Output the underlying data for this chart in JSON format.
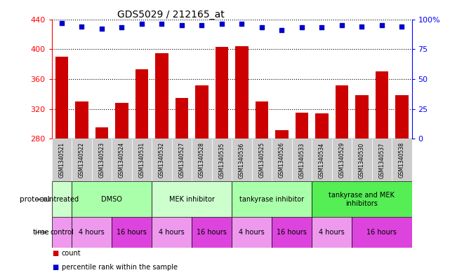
{
  "title": "GDS5029 / 212165_at",
  "samples": [
    "GSM1340521",
    "GSM1340522",
    "GSM1340523",
    "GSM1340524",
    "GSM1340531",
    "GSM1340532",
    "GSM1340527",
    "GSM1340528",
    "GSM1340535",
    "GSM1340536",
    "GSM1340525",
    "GSM1340526",
    "GSM1340533",
    "GSM1340534",
    "GSM1340529",
    "GSM1340530",
    "GSM1340537",
    "GSM1340538"
  ],
  "counts": [
    390,
    330,
    295,
    328,
    373,
    395,
    335,
    352,
    403,
    404,
    330,
    292,
    315,
    314,
    352,
    338,
    370,
    338
  ],
  "percentile_ranks": [
    97,
    94,
    92,
    93,
    96,
    96,
    95,
    95,
    96,
    96,
    93,
    91,
    93,
    93,
    95,
    94,
    95,
    94
  ],
  "ylim_left": [
    280,
    440
  ],
  "ylim_right": [
    0,
    100
  ],
  "yticks_left": [
    280,
    320,
    360,
    400,
    440
  ],
  "yticks_right": [
    0,
    25,
    50,
    75,
    100
  ],
  "bar_color": "#cc0000",
  "scatter_color": "#0000cc",
  "background_color": "#ffffff",
  "xtick_bg": "#cccccc",
  "protocol_groups": [
    {
      "label": "untreated",
      "start": 0,
      "end": 1,
      "color": "#ccffcc"
    },
    {
      "label": "DMSO",
      "start": 1,
      "end": 5,
      "color": "#aaffaa"
    },
    {
      "label": "MEK inhibitor",
      "start": 5,
      "end": 9,
      "color": "#ccffcc"
    },
    {
      "label": "tankyrase inhibitor",
      "start": 9,
      "end": 13,
      "color": "#aaffaa"
    },
    {
      "label": "tankyrase and MEK\ninhibitors",
      "start": 13,
      "end": 18,
      "color": "#55ee55"
    }
  ],
  "time_groups": [
    {
      "label": "control",
      "start": 0,
      "end": 1,
      "color": "#ee99ee"
    },
    {
      "label": "4 hours",
      "start": 1,
      "end": 3,
      "color": "#ee99ee"
    },
    {
      "label": "16 hours",
      "start": 3,
      "end": 5,
      "color": "#dd44dd"
    },
    {
      "label": "4 hours",
      "start": 5,
      "end": 7,
      "color": "#ee99ee"
    },
    {
      "label": "16 hours",
      "start": 7,
      "end": 9,
      "color": "#dd44dd"
    },
    {
      "label": "4 hours",
      "start": 9,
      "end": 11,
      "color": "#ee99ee"
    },
    {
      "label": "16 hours",
      "start": 11,
      "end": 13,
      "color": "#dd44dd"
    },
    {
      "label": "4 hours",
      "start": 13,
      "end": 15,
      "color": "#ee99ee"
    },
    {
      "label": "16 hours",
      "start": 15,
      "end": 18,
      "color": "#dd44dd"
    }
  ],
  "legend_count_color": "#cc0000",
  "legend_percentile_color": "#0000cc"
}
